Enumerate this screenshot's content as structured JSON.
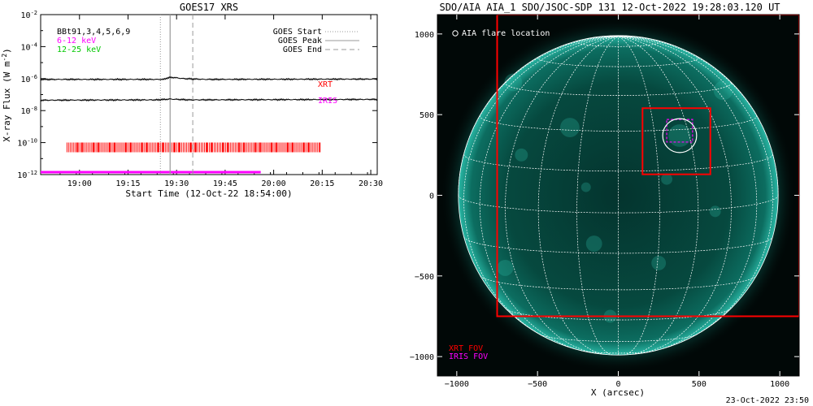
{
  "footer_timestamp": "23-Oct-2022 23:50",
  "chart_data": [
    {
      "type": "line",
      "title": "GOES17 XRS",
      "xlabel": "Start Time (12-Oct-22 18:54:00)",
      "ylabel": "X-ray Flux (W m^-2)",
      "ylabel_main": "X-ray Flux (W m",
      "ylabel_exp": "-2",
      "ylabel_close": ")",
      "yscale": "log",
      "ylim_exp": [
        -12,
        -2
      ],
      "yticks": [
        {
          "exp": -2,
          "label": "-2"
        },
        {
          "exp": -4,
          "label": "-4"
        },
        {
          "exp": -6,
          "label": "-6"
        },
        {
          "exp": -8,
          "label": "-8"
        },
        {
          "exp": -10,
          "label": "-10"
        },
        {
          "exp": -12,
          "label": "-12"
        }
      ],
      "ytick_base": "10",
      "xlim_minutes": [
        -6,
        98
      ],
      "xticks": [
        {
          "m": 6,
          "label": "19:00"
        },
        {
          "m": 21,
          "label": "19:15"
        },
        {
          "m": 36,
          "label": "19:30"
        },
        {
          "m": 51,
          "label": "19:45"
        },
        {
          "m": 66,
          "label": "20:00"
        },
        {
          "m": 81,
          "label": "20:15"
        },
        {
          "m": 96,
          "label": "20:30"
        }
      ],
      "channel_labels": [
        {
          "text": "BBt91,3,4,5,6,9",
          "color": "#000000"
        },
        {
          "text": "6-12 keV",
          "color": "#ff00ff"
        },
        {
          "text": "12-25 keV",
          "color": "#00c800"
        }
      ],
      "legend": [
        {
          "text": "GOES Start",
          "style": "dotted"
        },
        {
          "text": "GOES Peak",
          "style": "solid"
        },
        {
          "text": "GOES End",
          "style": "dashed"
        }
      ],
      "markers_minutes": {
        "start": 31,
        "peak": 34,
        "end": 41
      },
      "series": [
        {
          "label_color": "#000000",
          "points": [
            [
              -6,
              -6.05
            ],
            [
              20,
              -6.05
            ],
            [
              32,
              -6.05
            ],
            [
              33,
              -5.97
            ],
            [
              34,
              -5.93
            ],
            [
              35,
              -5.93
            ],
            [
              38,
              -6.0
            ],
            [
              45,
              -6.05
            ],
            [
              98,
              -6.03
            ]
          ]
        },
        {
          "label_color": "#000000",
          "points": [
            [
              -6,
              -7.35
            ],
            [
              30,
              -7.33
            ],
            [
              34,
              -7.28
            ],
            [
              40,
              -7.33
            ],
            [
              98,
              -7.3
            ]
          ]
        }
      ],
      "instrument_labels": [
        {
          "text": "XRT",
          "color": "#ff0000"
        },
        {
          "text": "IRIS",
          "color": "#ff00ff"
        }
      ],
      "xrt_obs": {
        "color": "#ff0000",
        "from_min": 2,
        "to_min": 80,
        "level_exp": -10.3
      },
      "iris_obs": {
        "color": "#ff00ff",
        "from_min": -6,
        "to_min": 62,
        "level_exp": -11.85
      }
    },
    {
      "type": "image",
      "title": "SDO/AIA AIA_1 SDO/JSOC-SDP 131 12-Oct-2022 19:28:03.120 UT",
      "xlabel": "X (arcsec)",
      "ylabel": "",
      "xlim": [
        -1120,
        1120
      ],
      "ylim": [
        -1120,
        1120
      ],
      "xticks": [
        -1000,
        -500,
        0,
        500,
        1000
      ],
      "yticks": [
        -1000,
        -500,
        0,
        500,
        1000
      ],
      "solar_radius_arcsec": 990,
      "flare_legend": "AIA flare location",
      "fov_legend": [
        {
          "text": "XRT FOV",
          "color": "#ff0000"
        },
        {
          "text": "IRIS FOV",
          "color": "#ff00ff"
        }
      ],
      "xrt_fov": {
        "x": [
          -750,
          1120
        ],
        "y": [
          -750,
          1120
        ]
      },
      "xrt_fov_small": {
        "x": [
          150,
          570
        ],
        "y": [
          130,
          540
        ]
      },
      "iris_fov": {
        "x": [
          300,
          460
        ],
        "y": [
          330,
          470
        ]
      },
      "flare_location": {
        "x": 380,
        "y": 370,
        "r": 105
      }
    }
  ]
}
